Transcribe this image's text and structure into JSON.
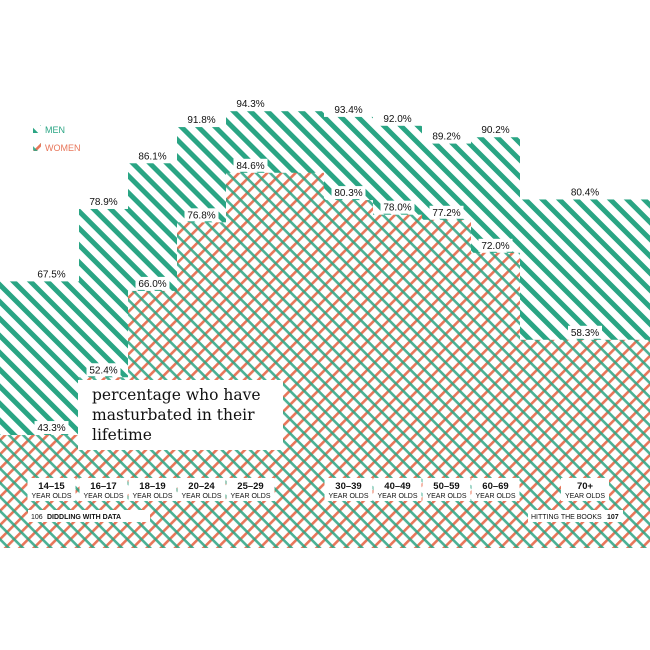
{
  "chart_data": {
    "type": "bar",
    "title": "percentage who have masturbated in their lifetime",
    "categories": [
      "14–15",
      "16–17",
      "18–19",
      "20–24",
      "25–29",
      "",
      "30–39",
      "40–49",
      "50–59",
      "60–69",
      "70+"
    ],
    "category_sublabel": "YEAR OLDS",
    "series": [
      {
        "name": "MEN",
        "values": [
          67.5,
          78.9,
          86.1,
          91.8,
          94.3,
          null,
          93.4,
          92.0,
          89.2,
          90.2,
          80.4
        ],
        "labels": [
          "67.5%",
          "78.9%",
          "86.1%",
          "91.8%",
          "94.3%",
          "",
          "93.4%",
          "92.0%",
          "89.2%",
          "90.2%",
          "80.4%"
        ]
      },
      {
        "name": "WOMEN",
        "values": [
          43.3,
          52.4,
          66.0,
          76.8,
          84.6,
          null,
          80.3,
          78.0,
          77.2,
          72.0,
          58.3
        ],
        "labels": [
          "43.3%",
          "52.4%",
          "66.0%",
          "76.8%",
          "84.6%",
          "",
          "80.3%",
          "78.0%",
          "77.2%",
          "72.0%",
          "58.3%"
        ]
      }
    ],
    "legend": {
      "position": "top-left",
      "entries": [
        "MEN",
        "WOMEN"
      ]
    },
    "grid": false
  },
  "colors": {
    "men": "#2aa584",
    "women": "#e8765a"
  },
  "footer": {
    "left_page": "106",
    "left_text": "DIDDLING WITH DATA",
    "right_text": "HITTING THE BOOKS",
    "right_page": "107"
  }
}
